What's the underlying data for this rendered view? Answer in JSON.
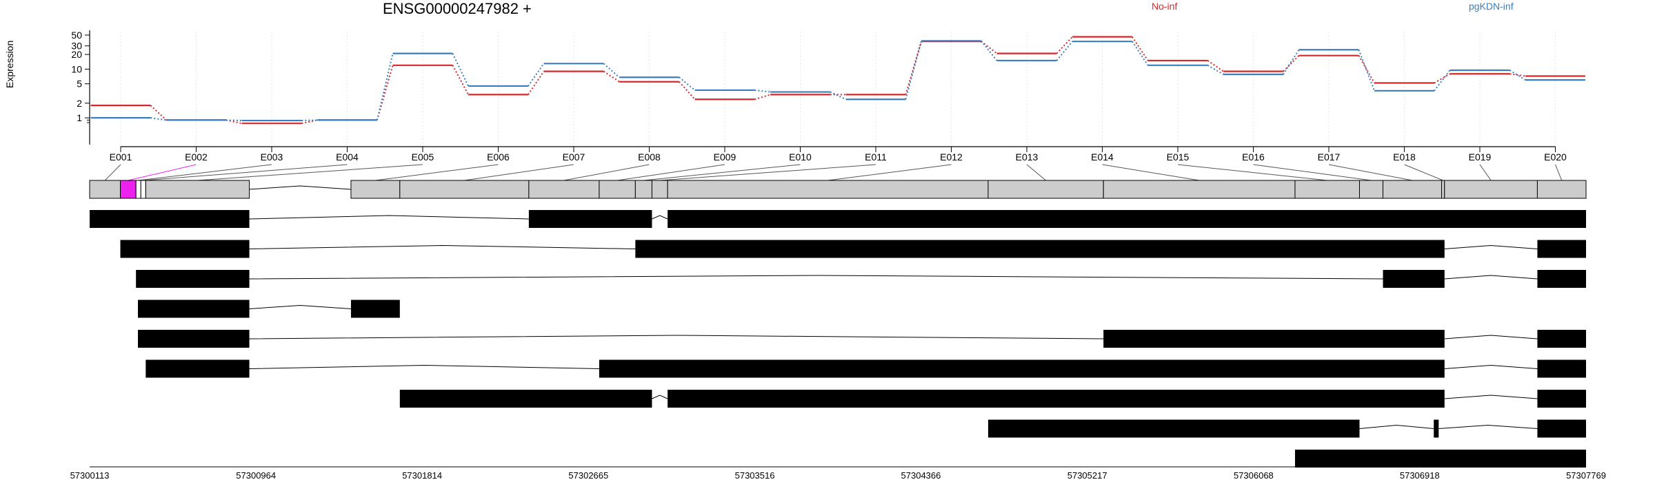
{
  "chart_data": {
    "type": "line",
    "title": "ENSG00000247982 +",
    "ylabel": "Expression",
    "xlabel": "",
    "y_scale": "log",
    "y_ticks": [
      "1",
      "2",
      "5",
      "10",
      "20",
      "30",
      "50"
    ],
    "exon_labels": [
      "E001",
      "E002",
      "E003",
      "E004",
      "E005",
      "E006",
      "E007",
      "E008",
      "E009",
      "E010",
      "E011",
      "E012",
      "E013",
      "E014",
      "E015",
      "E016",
      "E017",
      "E018",
      "E019",
      "E020"
    ],
    "series": [
      {
        "name": "No-inf",
        "color": "#d62728",
        "values": [
          1.8,
          0.9,
          0.77,
          0.9,
          12,
          3,
          9,
          5.5,
          2.4,
          3,
          3,
          37,
          21,
          46,
          15,
          9,
          19,
          5.2,
          8,
          7.2
        ]
      },
      {
        "name": "pgKDN-inf",
        "color": "#3a7dbf",
        "values": [
          1.0,
          0.9,
          0.88,
          0.9,
          21,
          4.5,
          13,
          6.8,
          3.7,
          3.4,
          2.4,
          38,
          15,
          37,
          12,
          7.8,
          25,
          3.6,
          9.5,
          6
        ]
      }
    ],
    "genomic_ticks": [
      "57300113",
      "57300964",
      "57301814",
      "57302665",
      "57303516",
      "57304366",
      "57305217",
      "57306068",
      "57306918",
      "57307769"
    ],
    "genome_range": [
      57300113,
      57307769
    ],
    "exons": [
      [
        57300113,
        57300270
      ],
      [
        57300270,
        57300350
      ],
      [
        57300350,
        57300375
      ],
      [
        57300375,
        57300400
      ],
      [
        57300400,
        57300930
      ],
      [
        57301450,
        57301700
      ],
      [
        57301700,
        57302360
      ],
      [
        57302360,
        57302720
      ],
      [
        57302720,
        57302905
      ],
      [
        57302905,
        57302990
      ],
      [
        57302990,
        57303070
      ],
      [
        57303070,
        57304710
      ],
      [
        57304710,
        57305300
      ],
      [
        57305300,
        57306280
      ],
      [
        57306280,
        57306610
      ],
      [
        57306610,
        57306730
      ],
      [
        57306730,
        57307030
      ],
      [
        57307030,
        57307045
      ],
      [
        57307045,
        57307520
      ],
      [
        57307520,
        57307769
      ]
    ],
    "highlighted_exon": "E002",
    "highlight_color": "#ee22ee",
    "transcripts": [
      [
        [
          57300113,
          57300930
        ],
        [
          57302360,
          57302990
        ],
        [
          57303070,
          57307769
        ]
      ],
      [
        [
          57300270,
          57300930
        ],
        [
          57302905,
          57307045
        ],
        [
          57307520,
          57307769
        ]
      ],
      [
        [
          57300350,
          57300930
        ],
        [
          57306730,
          57307045
        ],
        [
          57307520,
          57307769
        ]
      ],
      [
        [
          57300360,
          57300930
        ],
        [
          57301450,
          57301700
        ]
      ],
      [
        [
          57300360,
          57300930
        ],
        [
          57305300,
          57307045
        ],
        [
          57307520,
          57307769
        ]
      ],
      [
        [
          57300400,
          57300930
        ],
        [
          57302720,
          57307045
        ],
        [
          57307520,
          57307769
        ]
      ],
      [
        [
          57301700,
          57302990
        ],
        [
          57303070,
          57307045
        ],
        [
          57307520,
          57307769
        ]
      ],
      [
        [
          57304710,
          57306610
        ],
        [
          57306990,
          57307015
        ],
        [
          57307520,
          57307769
        ]
      ],
      [
        [
          57306280,
          57307769
        ]
      ]
    ]
  }
}
